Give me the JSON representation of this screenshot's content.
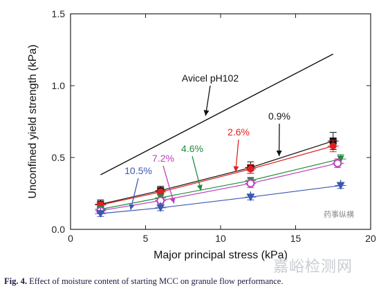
{
  "chart_data": {
    "type": "line",
    "title": "",
    "xlabel": "Major principal stress (kPa)",
    "ylabel": "Unconfined yield strength (kPa)",
    "xlim": [
      0,
      20
    ],
    "ylim": [
      0,
      1.5
    ],
    "x_ticks": [
      0,
      5,
      10,
      15,
      20
    ],
    "y_ticks": [
      0.0,
      0.5,
      1.0,
      1.5
    ],
    "x_tick_labels": [
      "0",
      "5",
      "10",
      "15",
      "20"
    ],
    "y_tick_labels": [
      "0.0",
      "0.5",
      "1.0",
      "1.5"
    ],
    "grid": false,
    "series": [
      {
        "name": "Avicel pH102",
        "color": "#111111",
        "marker": "none",
        "x": [
          2,
          17.5
        ],
        "y": [
          0.38,
          1.22
        ]
      },
      {
        "name": "0.9%",
        "color": "#111111",
        "marker": "square",
        "x": [
          2,
          6,
          12,
          17.5
        ],
        "y": [
          0.175,
          0.27,
          0.43,
          0.615
        ],
        "yerr": [
          0.03,
          0.03,
          0.04,
          0.06
        ]
      },
      {
        "name": "2.6%",
        "color": "#e02020",
        "marker": "circle",
        "x": [
          2,
          6,
          12,
          17.5
        ],
        "y": [
          0.17,
          0.26,
          0.42,
          0.58
        ],
        "yerr": [
          0.02,
          0.02,
          0.03,
          0.04
        ]
      },
      {
        "name": "4.6%",
        "color": "#1f8a3a",
        "marker": "triangle-down",
        "x": [
          2,
          6,
          12,
          18
        ],
        "y": [
          0.14,
          0.22,
          0.34,
          0.49
        ],
        "yerr": [
          0.02,
          0.02,
          0.02,
          0.03
        ]
      },
      {
        "name": "7.2%",
        "color": "#c03cc0",
        "marker": "circle-open",
        "x": [
          2,
          6,
          12,
          17.8
        ],
        "y": [
          0.13,
          0.2,
          0.32,
          0.46
        ],
        "yerr": [
          0.02,
          0.02,
          0.03,
          0.03
        ]
      },
      {
        "name": "10.5%",
        "color": "#3a58b0",
        "marker": "star",
        "x": [
          2,
          6,
          12,
          18
        ],
        "y": [
          0.11,
          0.15,
          0.225,
          0.305
        ],
        "yerr": [
          0.02,
          0.02,
          0.02,
          0.02
        ]
      }
    ],
    "annotations": [
      {
        "text": "Avicel pH102",
        "color": "#111111",
        "arrow_to": [
          9.0,
          0.79
        ]
      },
      {
        "text": "0.9%",
        "color": "#111111",
        "arrow_to": [
          13.9,
          0.51
        ]
      },
      {
        "text": "2.6%",
        "color": "#e02020",
        "arrow_to": [
          11.0,
          0.4
        ]
      },
      {
        "text": "4.6%",
        "color": "#1f8a3a",
        "arrow_to": [
          8.7,
          0.27
        ]
      },
      {
        "text": "7.2%",
        "color": "#c03cc0",
        "arrow_to": [
          6.9,
          0.18
        ]
      },
      {
        "text": "10.5%",
        "color": "#3a58b0",
        "arrow_to": [
          4.0,
          0.135
        ]
      }
    ]
  },
  "caption": {
    "label": "Fig. 4.",
    "text": "Effect of moisture content of starting MCC on granule flow performance."
  },
  "watermark": {
    "text": "嘉峪检测网",
    "text2": "药事纵横"
  }
}
